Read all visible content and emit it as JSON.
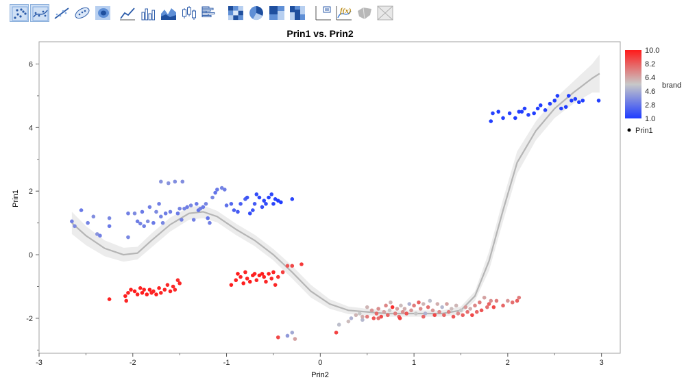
{
  "toolbar": {
    "buttons": [
      {
        "icon": "points-icon",
        "active": true
      },
      {
        "icon": "contour-points-icon",
        "active": true
      },
      {
        "icon": "line-fit-icon",
        "active": false
      },
      {
        "icon": "ellipse-icon",
        "active": false
      },
      {
        "icon": "density-icon",
        "active": false
      },
      {
        "icon": "line-chart-icon",
        "active": false
      },
      {
        "icon": "bar-chart-icon",
        "active": false
      },
      {
        "icon": "area-chart-icon",
        "active": false
      },
      {
        "icon": "box-plot-icon",
        "active": false
      },
      {
        "icon": "histogram-icon",
        "active": false
      },
      {
        "icon": "heatmap-icon",
        "active": false
      },
      {
        "icon": "pie-chart-icon",
        "active": false
      },
      {
        "icon": "treemap-icon",
        "active": false
      },
      {
        "icon": "mosaic-icon",
        "active": false
      },
      {
        "icon": "caption-box-icon",
        "active": false
      },
      {
        "icon": "formula-icon",
        "active": false
      },
      {
        "icon": "map-shape-icon",
        "active": false
      },
      {
        "icon": "street-map-icon",
        "active": false
      }
    ]
  },
  "chart_data": {
    "type": "scatter",
    "title": "Prin1 vs. Prin2",
    "xlabel": "Prin2",
    "ylabel": "Prin1",
    "xlim": [
      -3,
      3.2
    ],
    "ylim": [
      -3.1,
      6.7
    ],
    "xticks": [
      "-3",
      "-2",
      "-1",
      "0",
      "1",
      "2",
      "3"
    ],
    "yticks": [
      "-2",
      "0",
      "2",
      "4",
      "6"
    ],
    "grid": false,
    "color_legend": {
      "title": "brand",
      "labels": [
        "10.0",
        "8.2",
        "6.4",
        "4.6",
        "2.8",
        "1.0"
      ],
      "low_color": "#1f3cff",
      "mid_color": "#c8c8c8",
      "high_color": "#ff1a1a"
    },
    "series_legend": [
      "Prin1"
    ],
    "smoother": {
      "color": "#b5b5b5",
      "band_color": "#ececec",
      "x": [
        -2.65,
        -2.5,
        -2.3,
        -2.1,
        -1.95,
        -1.8,
        -1.6,
        -1.4,
        -1.25,
        -1.1,
        -0.9,
        -0.7,
        -0.5,
        -0.3,
        -0.1,
        0.1,
        0.3,
        0.5,
        0.7,
        0.9,
        1.1,
        1.3,
        1.5,
        1.65,
        1.8,
        1.95,
        2.1,
        2.3,
        2.5,
        2.7,
        2.9,
        2.98
      ],
      "y": [
        1.0,
        0.6,
        0.2,
        0.0,
        0.05,
        0.45,
        0.95,
        1.3,
        1.35,
        1.2,
        0.8,
        0.45,
        0.0,
        -0.55,
        -1.15,
        -1.55,
        -1.75,
        -1.8,
        -1.85,
        -1.85,
        -1.85,
        -1.85,
        -1.75,
        -1.3,
        -0.2,
        1.4,
        2.9,
        3.9,
        4.6,
        5.1,
        5.55,
        5.7
      ],
      "band": [
        0.35,
        0.3,
        0.25,
        0.22,
        0.2,
        0.22,
        0.22,
        0.2,
        0.2,
        0.18,
        0.18,
        0.18,
        0.18,
        0.2,
        0.2,
        0.15,
        0.12,
        0.1,
        0.1,
        0.1,
        0.1,
        0.1,
        0.12,
        0.15,
        0.3,
        0.35,
        0.35,
        0.3,
        0.3,
        0.35,
        0.45,
        0.6
      ]
    },
    "points": [
      {
        "x": -2.65,
        "y": 1.05,
        "c": 3.2
      },
      {
        "x": -2.62,
        "y": 0.9,
        "c": 3.5
      },
      {
        "x": -2.55,
        "y": 1.4,
        "c": 3.0
      },
      {
        "x": -2.48,
        "y": 1.0,
        "c": 3.3
      },
      {
        "x": -2.42,
        "y": 1.2,
        "c": 3.6
      },
      {
        "x": -2.38,
        "y": 0.65,
        "c": 3.8
      },
      {
        "x": -2.35,
        "y": 0.6,
        "c": 3.2
      },
      {
        "x": -2.25,
        "y": 1.15,
        "c": 3.4
      },
      {
        "x": -2.25,
        "y": 0.9,
        "c": 3.0
      },
      {
        "x": -2.05,
        "y": 1.3,
        "c": 3.2
      },
      {
        "x": -2.05,
        "y": 0.55,
        "c": 3.4
      },
      {
        "x": -1.98,
        "y": 1.3,
        "c": 3.5
      },
      {
        "x": -1.95,
        "y": 1.05,
        "c": 3.1
      },
      {
        "x": -1.92,
        "y": 0.98,
        "c": 3.3
      },
      {
        "x": -1.9,
        "y": 1.35,
        "c": 3.0
      },
      {
        "x": -1.88,
        "y": 0.9,
        "c": 3.2
      },
      {
        "x": -1.84,
        "y": 1.05,
        "c": 3.6
      },
      {
        "x": -1.82,
        "y": 1.5,
        "c": 3.2
      },
      {
        "x": -1.78,
        "y": 1.0,
        "c": 3.0
      },
      {
        "x": -1.75,
        "y": 1.35,
        "c": 3.5
      },
      {
        "x": -1.72,
        "y": 1.6,
        "c": 3.2
      },
      {
        "x": -1.7,
        "y": 2.3,
        "c": 3.8
      },
      {
        "x": -1.7,
        "y": 1.2,
        "c": 3.3
      },
      {
        "x": -1.68,
        "y": 1.0,
        "c": 3.4
      },
      {
        "x": -1.65,
        "y": 1.3,
        "c": 3.1
      },
      {
        "x": -1.62,
        "y": 2.25,
        "c": 3.8
      },
      {
        "x": -1.6,
        "y": 1.35,
        "c": 3.2
      },
      {
        "x": -1.55,
        "y": 2.3,
        "c": 3.6
      },
      {
        "x": -1.52,
        "y": 1.3,
        "c": 3.0
      },
      {
        "x": -1.5,
        "y": 1.45,
        "c": 3.3
      },
      {
        "x": -1.48,
        "y": 1.1,
        "c": 3.2
      },
      {
        "x": -1.47,
        "y": 2.3,
        "c": 3.6
      },
      {
        "x": -1.45,
        "y": 1.45,
        "c": 3.3
      },
      {
        "x": -1.42,
        "y": 1.5,
        "c": 3.1
      },
      {
        "x": -1.38,
        "y": 1.55,
        "c": 3.4
      },
      {
        "x": -1.35,
        "y": 1.1,
        "c": 3.2
      },
      {
        "x": -1.32,
        "y": 1.6,
        "c": 3.0
      },
      {
        "x": -1.3,
        "y": 1.4,
        "c": 2.8
      },
      {
        "x": -1.28,
        "y": 1.45,
        "c": 3.2
      },
      {
        "x": -1.25,
        "y": 1.5,
        "c": 3.0
      },
      {
        "x": -1.22,
        "y": 1.6,
        "c": 3.3
      },
      {
        "x": -1.2,
        "y": 1.15,
        "c": 2.8
      },
      {
        "x": -1.18,
        "y": 1.0,
        "c": 3.2
      },
      {
        "x": -1.15,
        "y": 1.8,
        "c": 3.4
      },
      {
        "x": -1.12,
        "y": 1.95,
        "c": 2.8
      },
      {
        "x": -1.1,
        "y": 2.05,
        "c": 3.0
      },
      {
        "x": -1.05,
        "y": 2.1,
        "c": 3.3
      },
      {
        "x": -1.02,
        "y": 2.05,
        "c": 3.1
      },
      {
        "x": -1.0,
        "y": 1.55,
        "c": 2.7
      },
      {
        "x": -0.95,
        "y": 1.6,
        "c": 2.4
      },
      {
        "x": -0.92,
        "y": 1.4,
        "c": 2.2
      },
      {
        "x": -0.88,
        "y": 1.35,
        "c": 2.0
      },
      {
        "x": -0.85,
        "y": 1.6,
        "c": 2.1
      },
      {
        "x": -0.8,
        "y": 1.75,
        "c": 2.2
      },
      {
        "x": -0.78,
        "y": 1.8,
        "c": 1.8
      },
      {
        "x": -0.75,
        "y": 1.3,
        "c": 1.5
      },
      {
        "x": -0.72,
        "y": 1.4,
        "c": 1.7
      },
      {
        "x": -0.7,
        "y": 1.6,
        "c": 2.0
      },
      {
        "x": -0.68,
        "y": 1.9,
        "c": 1.5
      },
      {
        "x": -0.65,
        "y": 1.8,
        "c": 1.4
      },
      {
        "x": -0.62,
        "y": 1.5,
        "c": 1.6
      },
      {
        "x": -0.6,
        "y": 1.7,
        "c": 1.3
      },
      {
        "x": -0.58,
        "y": 1.6,
        "c": 1.5
      },
      {
        "x": -0.55,
        "y": 1.8,
        "c": 1.2
      },
      {
        "x": -0.52,
        "y": 1.9,
        "c": 1.4
      },
      {
        "x": -0.5,
        "y": 1.6,
        "c": 1.3
      },
      {
        "x": -0.48,
        "y": 1.75,
        "c": 1.2
      },
      {
        "x": -0.45,
        "y": 1.7,
        "c": 1.1
      },
      {
        "x": -0.42,
        "y": 1.65,
        "c": 1.0
      },
      {
        "x": -0.3,
        "y": 1.75,
        "c": 1.3
      },
      {
        "x": 1.82,
        "y": 4.2,
        "c": 1.1
      },
      {
        "x": 1.84,
        "y": 4.45,
        "c": 1.2
      },
      {
        "x": 1.9,
        "y": 4.5,
        "c": 1.0
      },
      {
        "x": 1.95,
        "y": 4.3,
        "c": 1.1
      },
      {
        "x": 2.02,
        "y": 4.45,
        "c": 1.2
      },
      {
        "x": 2.08,
        "y": 4.3,
        "c": 1.0
      },
      {
        "x": 2.12,
        "y": 4.5,
        "c": 1.1
      },
      {
        "x": 2.15,
        "y": 4.5,
        "c": 1.0
      },
      {
        "x": 2.18,
        "y": 4.6,
        "c": 1.1
      },
      {
        "x": 2.22,
        "y": 4.4,
        "c": 1.2
      },
      {
        "x": 2.28,
        "y": 4.45,
        "c": 1.0
      },
      {
        "x": 2.32,
        "y": 4.6,
        "c": 1.1
      },
      {
        "x": 2.35,
        "y": 4.7,
        "c": 1.0
      },
      {
        "x": 2.4,
        "y": 4.55,
        "c": 1.2
      },
      {
        "x": 2.45,
        "y": 4.75,
        "c": 1.1
      },
      {
        "x": 2.5,
        "y": 4.85,
        "c": 1.0
      },
      {
        "x": 2.53,
        "y": 5.0,
        "c": 1.1
      },
      {
        "x": 2.57,
        "y": 4.6,
        "c": 1.2
      },
      {
        "x": 2.62,
        "y": 4.65,
        "c": 1.0
      },
      {
        "x": 2.65,
        "y": 5.0,
        "c": 1.1
      },
      {
        "x": 2.68,
        "y": 4.85,
        "c": 1.0
      },
      {
        "x": 2.72,
        "y": 4.9,
        "c": 1.1
      },
      {
        "x": 2.76,
        "y": 4.8,
        "c": 1.0
      },
      {
        "x": 2.8,
        "y": 4.85,
        "c": 1.0
      },
      {
        "x": 2.97,
        "y": 4.85,
        "c": 1.1
      },
      {
        "x": -2.25,
        "y": -1.4,
        "c": 9.8
      },
      {
        "x": -2.08,
        "y": -1.3,
        "c": 9.9
      },
      {
        "x": -2.07,
        "y": -1.45,
        "c": 9.7
      },
      {
        "x": -2.05,
        "y": -1.2,
        "c": 9.8
      },
      {
        "x": -2.02,
        "y": -1.1,
        "c": 9.9
      },
      {
        "x": -1.98,
        "y": -1.15,
        "c": 10.0
      },
      {
        "x": -1.95,
        "y": -1.25,
        "c": 9.8
      },
      {
        "x": -1.92,
        "y": -1.05,
        "c": 9.9
      },
      {
        "x": -1.9,
        "y": -1.2,
        "c": 10.0
      },
      {
        "x": -1.88,
        "y": -1.1,
        "c": 9.8
      },
      {
        "x": -1.85,
        "y": -1.25,
        "c": 9.9
      },
      {
        "x": -1.82,
        "y": -1.1,
        "c": 10.0
      },
      {
        "x": -1.8,
        "y": -1.2,
        "c": 9.7
      },
      {
        "x": -1.78,
        "y": -1.15,
        "c": 9.8
      },
      {
        "x": -1.75,
        "y": -1.25,
        "c": 9.9
      },
      {
        "x": -1.72,
        "y": -1.05,
        "c": 9.8
      },
      {
        "x": -1.7,
        "y": -1.2,
        "c": 9.7
      },
      {
        "x": -1.66,
        "y": -1.1,
        "c": 9.8
      },
      {
        "x": -1.63,
        "y": -0.95,
        "c": 9.6
      },
      {
        "x": -1.6,
        "y": -1.15,
        "c": 9.8
      },
      {
        "x": -1.57,
        "y": -1.0,
        "c": 9.7
      },
      {
        "x": -1.55,
        "y": -1.1,
        "c": 9.6
      },
      {
        "x": -1.52,
        "y": -0.8,
        "c": 9.5
      },
      {
        "x": -1.5,
        "y": -0.9,
        "c": 9.7
      },
      {
        "x": -0.95,
        "y": -0.95,
        "c": 9.9
      },
      {
        "x": -0.9,
        "y": -0.8,
        "c": 9.8
      },
      {
        "x": -0.88,
        "y": -0.6,
        "c": 10.0
      },
      {
        "x": -0.85,
        "y": -0.7,
        "c": 9.8
      },
      {
        "x": -0.82,
        "y": -0.9,
        "c": 9.9
      },
      {
        "x": -0.8,
        "y": -0.55,
        "c": 9.7
      },
      {
        "x": -0.78,
        "y": -0.75,
        "c": 9.8
      },
      {
        "x": -0.75,
        "y": -0.85,
        "c": 10.0
      },
      {
        "x": -0.72,
        "y": -0.65,
        "c": 9.9
      },
      {
        "x": -0.7,
        "y": -0.6,
        "c": 9.8
      },
      {
        "x": -0.68,
        "y": -0.8,
        "c": 9.7
      },
      {
        "x": -0.65,
        "y": -0.65,
        "c": 9.9
      },
      {
        "x": -0.62,
        "y": -0.6,
        "c": 10.0
      },
      {
        "x": -0.6,
        "y": -0.7,
        "c": 9.8
      },
      {
        "x": -0.58,
        "y": -0.85,
        "c": 9.7
      },
      {
        "x": -0.55,
        "y": -0.6,
        "c": 9.9
      },
      {
        "x": -0.52,
        "y": -0.75,
        "c": 9.6
      },
      {
        "x": -0.5,
        "y": -0.55,
        "c": 9.8
      },
      {
        "x": -0.48,
        "y": -0.95,
        "c": 9.7
      },
      {
        "x": -0.45,
        "y": -0.7,
        "c": 9.5
      },
      {
        "x": -0.4,
        "y": -0.55,
        "c": 9.0
      },
      {
        "x": -0.35,
        "y": -0.35,
        "c": 8.5
      },
      {
        "x": -0.3,
        "y": -0.35,
        "c": 8.8
      },
      {
        "x": -0.2,
        "y": -0.3,
        "c": 9.2
      },
      {
        "x": -0.45,
        "y": -2.6,
        "c": 8.8
      },
      {
        "x": -0.35,
        "y": -2.55,
        "c": 4.0
      },
      {
        "x": -0.3,
        "y": -2.45,
        "c": 4.5
      },
      {
        "x": -0.27,
        "y": -2.65,
        "c": 6.5
      },
      {
        "x": 0.17,
        "y": -2.45,
        "c": 9.0
      },
      {
        "x": 0.2,
        "y": -2.2,
        "c": 5.2
      },
      {
        "x": 0.3,
        "y": -2.1,
        "c": 5.8
      },
      {
        "x": 0.33,
        "y": -2.0,
        "c": 4.8
      },
      {
        "x": 0.38,
        "y": -1.9,
        "c": 6.0
      },
      {
        "x": 0.45,
        "y": -2.05,
        "c": 5.0
      },
      {
        "x": 0.42,
        "y": -1.85,
        "c": 5.5
      },
      {
        "x": 0.5,
        "y": -1.95,
        "c": 7.5
      },
      {
        "x": 0.55,
        "y": -1.75,
        "c": 6.8
      },
      {
        "x": 0.57,
        "y": -2.0,
        "c": 8.5
      },
      {
        "x": 0.6,
        "y": -1.85,
        "c": 8.0
      },
      {
        "x": 0.62,
        "y": -1.7,
        "c": 7.0
      },
      {
        "x": 0.65,
        "y": -1.95,
        "c": 8.8
      },
      {
        "x": 0.68,
        "y": -1.8,
        "c": 6.5
      },
      {
        "x": 0.7,
        "y": -1.6,
        "c": 7.2
      },
      {
        "x": 0.72,
        "y": -1.9,
        "c": 8.0
      },
      {
        "x": 0.74,
        "y": -1.75,
        "c": 5.5
      },
      {
        "x": 0.75,
        "y": -1.5,
        "c": 6.0
      },
      {
        "x": 0.77,
        "y": -1.65,
        "c": 9.5
      },
      {
        "x": 0.8,
        "y": -1.85,
        "c": 7.5
      },
      {
        "x": 0.82,
        "y": -1.7,
        "c": 6.5
      },
      {
        "x": 0.84,
        "y": -1.95,
        "c": 8.0
      },
      {
        "x": 0.86,
        "y": -1.6,
        "c": 5.8
      },
      {
        "x": 0.88,
        "y": -1.8,
        "c": 7.0
      },
      {
        "x": 0.9,
        "y": -1.7,
        "c": 6.2
      },
      {
        "x": 0.92,
        "y": -1.85,
        "c": 8.5
      },
      {
        "x": 0.95,
        "y": -1.55,
        "c": 4.8
      },
      {
        "x": 0.97,
        "y": -1.75,
        "c": 6.8
      },
      {
        "x": 1.0,
        "y": -1.6,
        "c": 7.5
      },
      {
        "x": 1.02,
        "y": -1.85,
        "c": 5.5
      },
      {
        "x": 1.05,
        "y": -1.5,
        "c": 8.2
      },
      {
        "x": 1.07,
        "y": -1.7,
        "c": 7.0
      },
      {
        "x": 1.1,
        "y": -1.55,
        "c": 6.0
      },
      {
        "x": 1.12,
        "y": -1.85,
        "c": 4.8
      },
      {
        "x": 1.15,
        "y": -1.65,
        "c": 7.8
      },
      {
        "x": 1.17,
        "y": -1.45,
        "c": 5.2
      },
      {
        "x": 1.2,
        "y": -1.75,
        "c": 6.8
      },
      {
        "x": 1.22,
        "y": -1.9,
        "c": 8.8
      },
      {
        "x": 1.25,
        "y": -1.55,
        "c": 6.2
      },
      {
        "x": 1.27,
        "y": -1.8,
        "c": 7.2
      },
      {
        "x": 1.3,
        "y": -1.65,
        "c": 5.0
      },
      {
        "x": 1.32,
        "y": -1.9,
        "c": 8.0
      },
      {
        "x": 1.35,
        "y": -1.55,
        "c": 6.5
      },
      {
        "x": 1.37,
        "y": -1.8,
        "c": 7.5
      },
      {
        "x": 1.4,
        "y": -1.7,
        "c": 5.8
      },
      {
        "x": 1.42,
        "y": -1.95,
        "c": 8.5
      },
      {
        "x": 1.45,
        "y": -1.6,
        "c": 6.0
      },
      {
        "x": 1.47,
        "y": -1.85,
        "c": 7.0
      },
      {
        "x": 1.5,
        "y": -1.75,
        "c": 5.5
      },
      {
        "x": 1.52,
        "y": -1.9,
        "c": 8.2
      },
      {
        "x": 1.55,
        "y": -1.65,
        "c": 6.8
      },
      {
        "x": 1.57,
        "y": -1.8,
        "c": 7.8
      },
      {
        "x": 1.6,
        "y": -1.7,
        "c": 6.2
      },
      {
        "x": 1.62,
        "y": -1.9,
        "c": 8.8
      },
      {
        "x": 1.65,
        "y": -1.6,
        "c": 7.2
      },
      {
        "x": 1.67,
        "y": -1.8,
        "c": 8.0
      },
      {
        "x": 1.7,
        "y": -1.5,
        "c": 7.5
      },
      {
        "x": 1.72,
        "y": -1.75,
        "c": 8.5
      },
      {
        "x": 1.75,
        "y": -1.35,
        "c": 6.5
      },
      {
        "x": 1.78,
        "y": -1.65,
        "c": 7.8
      },
      {
        "x": 1.8,
        "y": -1.55,
        "c": 8.2
      },
      {
        "x": 1.82,
        "y": -1.45,
        "c": 7.0
      },
      {
        "x": 1.85,
        "y": -1.65,
        "c": 8.8
      },
      {
        "x": 1.88,
        "y": -1.45,
        "c": 7.5
      },
      {
        "x": 1.95,
        "y": -1.6,
        "c": 8.0
      },
      {
        "x": 2.0,
        "y": -1.45,
        "c": 6.8
      },
      {
        "x": 2.05,
        "y": -1.5,
        "c": 7.8
      },
      {
        "x": 2.1,
        "y": -1.45,
        "c": 8.2
      },
      {
        "x": 2.12,
        "y": -1.35,
        "c": 7.5
      },
      {
        "x": 0.45,
        "y": -1.95,
        "c": 6.2
      },
      {
        "x": 0.5,
        "y": -1.65,
        "c": 6.0
      },
      {
        "x": 0.62,
        "y": -2.0,
        "c": 7.8
      },
      {
        "x": 0.85,
        "y": -2.0,
        "c": 9.0
      },
      {
        "x": 1.1,
        "y": -1.95,
        "c": 8.0
      }
    ]
  }
}
